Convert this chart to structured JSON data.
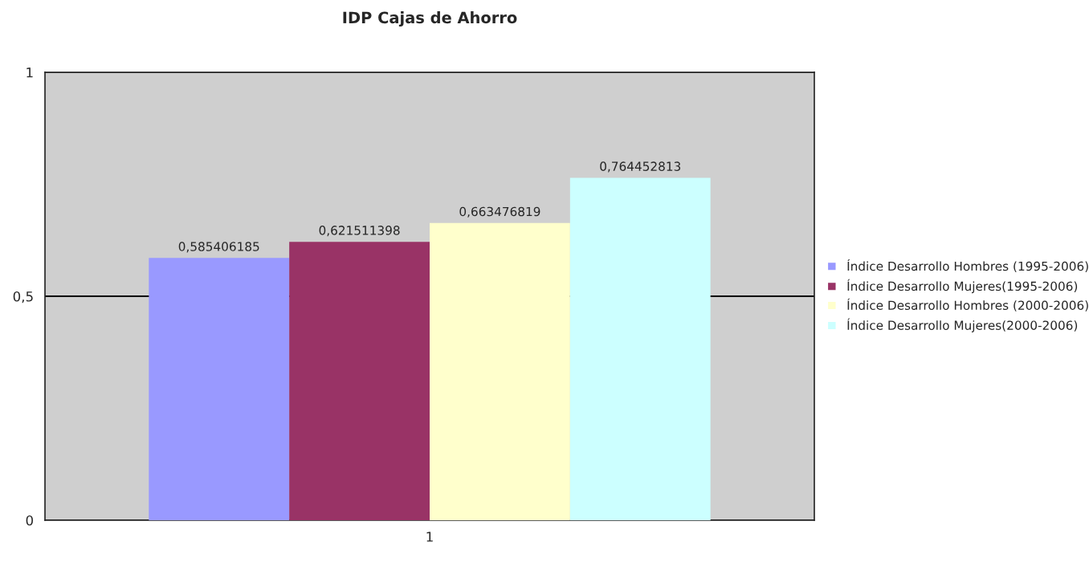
{
  "chart_data": {
    "type": "bar",
    "title": "IDP Cajas de Ahorro",
    "categories": [
      "1"
    ],
    "series": [
      {
        "name": "Índice Desarrollo Hombres (1995-2006)",
        "color": "#9999ff",
        "values": [
          0.585406185
        ],
        "value_labels": [
          "0,585406185"
        ]
      },
      {
        "name": "Índice Desarrollo Mujeres(1995-2006)",
        "color": "#993366",
        "values": [
          0.621511398
        ],
        "value_labels": [
          "0,621511398"
        ]
      },
      {
        "name": "Índice Desarrollo Hombres (2000-2006)",
        "color": "#ffffcc",
        "values": [
          0.663476819
        ],
        "value_labels": [
          "0,663476819"
        ]
      },
      {
        "name": "Índice Desarrollo Mujeres(2000-2006)",
        "color": "#ccffff",
        "values": [
          0.764452813
        ],
        "value_labels": [
          "0,764452813"
        ]
      }
    ],
    "ylim": [
      0,
      1
    ],
    "yticks": [
      0,
      {
        "value": 0.5,
        "label": "0,5"
      },
      1
    ],
    "grid": "y",
    "legend": "right"
  }
}
